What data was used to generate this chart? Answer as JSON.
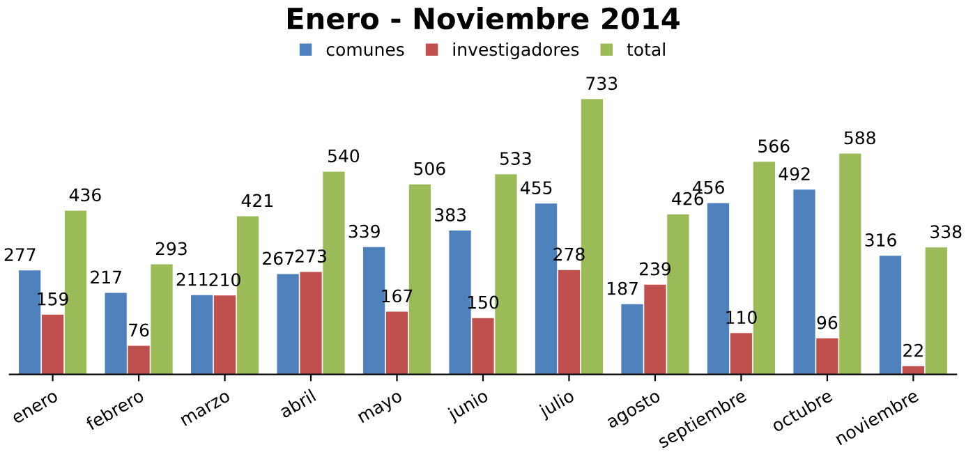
{
  "chart_data": {
    "type": "bar",
    "title": "Enero - Noviembre 2014",
    "categories": [
      "enero",
      "febrero",
      "marzo",
      "abril",
      "mayo",
      "junio",
      "julio",
      "agosto",
      "septiembre",
      "octubre",
      "noviembre"
    ],
    "series": [
      {
        "name": "comunes",
        "color": "#4f81bd",
        "values": [
          277,
          217,
          211,
          267,
          339,
          383,
          455,
          187,
          456,
          492,
          316
        ]
      },
      {
        "name": "investigadores",
        "color": "#c0504d",
        "values": [
          159,
          76,
          210,
          273,
          167,
          150,
          278,
          239,
          110,
          96,
          22
        ]
      },
      {
        "name": "total",
        "color": "#9bbb59",
        "values": [
          436,
          293,
          421,
          540,
          506,
          533,
          733,
          426,
          566,
          588,
          338
        ]
      }
    ],
    "data_labels": true,
    "legend": "top",
    "grid": false
  }
}
